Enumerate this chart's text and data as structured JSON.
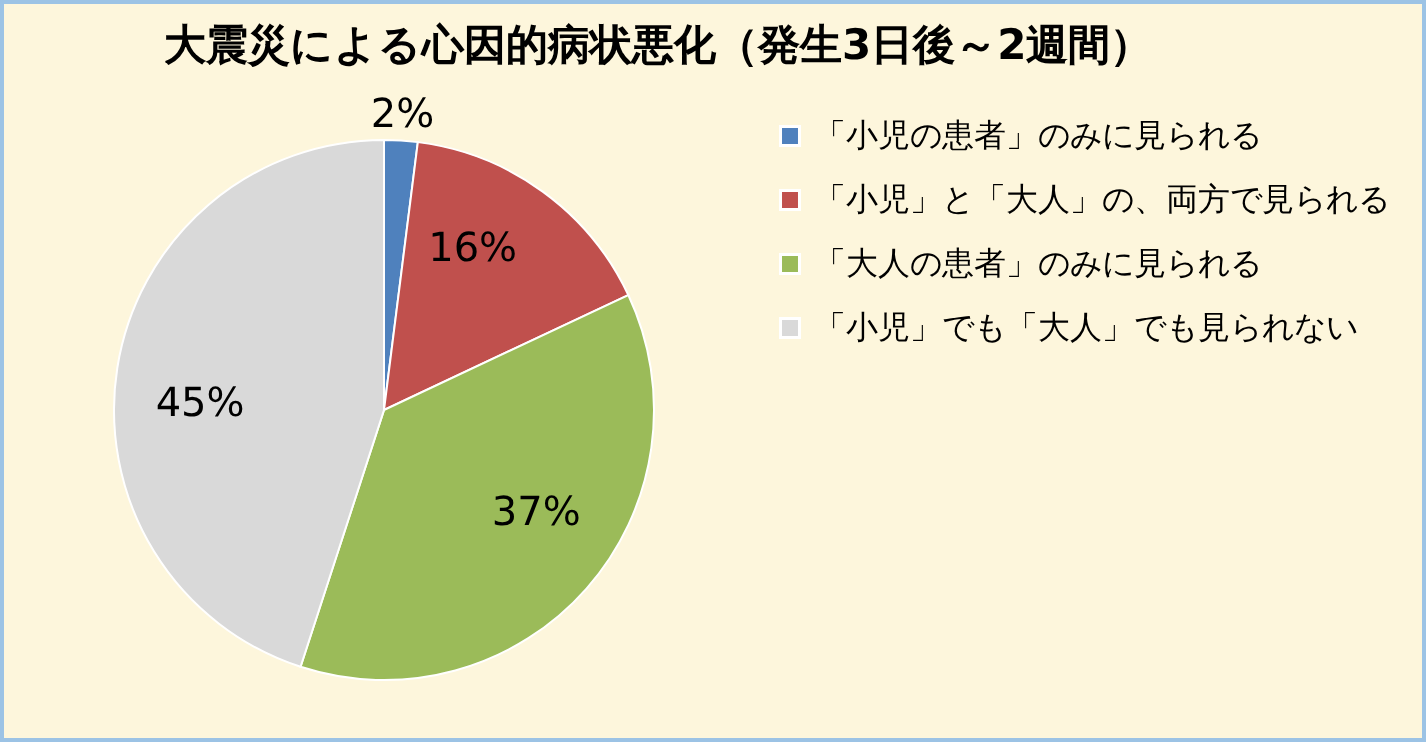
{
  "chart_data": {
    "type": "pie",
    "title": "大震災による心因的病状悪化（発生3日後～2週間）",
    "categories": [
      "「小児の患者」のみに見られる",
      "「小児」と「大人」の、両方で見られる",
      "「大人の患者」のみに見られる",
      "「小児」でも「大人」でも見られない"
    ],
    "values": [
      2,
      16,
      37,
      45
    ],
    "colors": [
      "#4f81bd",
      "#c0504d",
      "#9bbb59",
      "#d9d9d9"
    ],
    "value_labels": [
      "2%",
      "16%",
      "37%",
      "45%"
    ],
    "legend": "right"
  }
}
